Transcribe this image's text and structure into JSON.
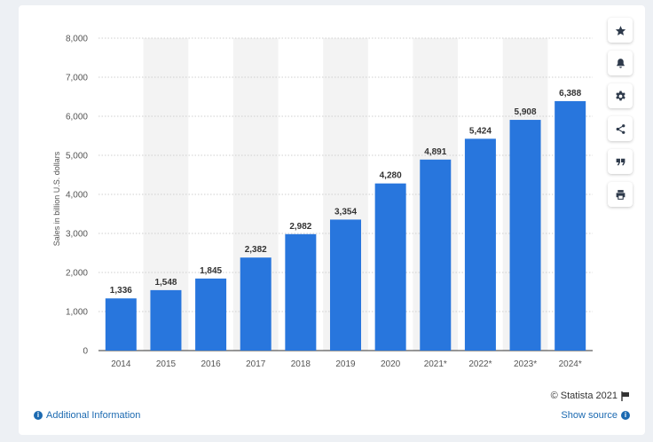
{
  "chart_data": {
    "type": "bar",
    "categories": [
      "2014",
      "2015",
      "2016",
      "2017",
      "2018",
      "2019",
      "2020",
      "2021*",
      "2022*",
      "2023*",
      "2024*"
    ],
    "values": [
      1336,
      1548,
      1845,
      2382,
      2982,
      3354,
      4280,
      4891,
      5424,
      5908,
      6388
    ],
    "value_labels": [
      "1,336",
      "1,548",
      "1,845",
      "2,382",
      "2,982",
      "3,354",
      "4,280",
      "4,891",
      "5,424",
      "5,908",
      "6,388"
    ],
    "title": "",
    "xlabel": "",
    "ylabel": "Sales in billion U.S. dollars",
    "ylim": [
      0,
      8000
    ],
    "yticks": [
      0,
      1000,
      2000,
      3000,
      4000,
      5000,
      6000,
      7000,
      8000
    ],
    "ytick_labels": [
      "0",
      "1,000",
      "2,000",
      "3,000",
      "4,000",
      "5,000",
      "6,000",
      "7,000",
      "8,000"
    ],
    "grid": true,
    "bar_color": "#2876dd",
    "band_color": "#f3f3f3"
  },
  "sidebar": {
    "buttons": [
      "star-icon",
      "bell-icon",
      "gear-icon",
      "share-icon",
      "quote-icon",
      "print-icon"
    ]
  },
  "footer": {
    "copyright": "© Statista 2021",
    "additional_info": "Additional Information",
    "show_source": "Show source"
  }
}
